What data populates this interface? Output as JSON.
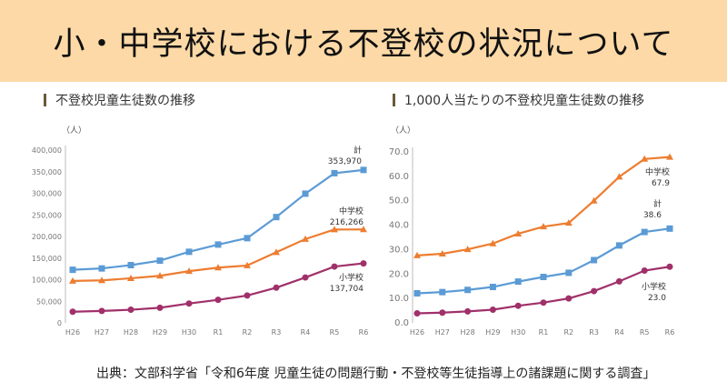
{
  "title": "小・中学校における不登校の状況について",
  "source": "出典：文部科学省「令和6年度 児童生徒の問題行動・不登校等生徒指導上の諸課題に関する調査」",
  "chart_data": [
    {
      "type": "line",
      "title": "不登校児童生徒数の推移",
      "ylabel": "（人）",
      "ylim": [
        0,
        400000
      ],
      "yticks": [
        "0",
        "50,000",
        "100,000",
        "150,000",
        "200,000",
        "250,000",
        "300,000",
        "350,000",
        "400,000"
      ],
      "categories": [
        "H26",
        "H27",
        "H28",
        "H29",
        "H30",
        "R1",
        "R2",
        "R3",
        "R4",
        "R5",
        "R6"
      ],
      "series": [
        {
          "name": "計",
          "color": "#5b9bd5",
          "marker": "square",
          "label": "353,970",
          "values": [
            122897,
            126009,
            133683,
            144031,
            164528,
            181272,
            196127,
            244940,
            299048,
            346482,
            353970
          ]
        },
        {
          "name": "中学校",
          "color": "#ed7d31",
          "marker": "triangle",
          "label": "216,266",
          "values": [
            97033,
            98408,
            103235,
            108999,
            119687,
            127922,
            132777,
            163442,
            193936,
            216112,
            216266
          ]
        },
        {
          "name": "小学校",
          "color": "#a0306a",
          "marker": "circle",
          "label": "137,704",
          "values": [
            25864,
            27583,
            30448,
            35032,
            44841,
            53350,
            63350,
            81498,
            105112,
            130370,
            137704
          ]
        }
      ]
    },
    {
      "type": "line",
      "title": "1,000人当たりの不登校児童生徒数の推移",
      "ylabel": "（人）",
      "ylim": [
        0,
        70
      ],
      "yticks": [
        "0.0",
        "10.0",
        "20.0",
        "30.0",
        "40.0",
        "50.0",
        "60.0",
        "70.0"
      ],
      "categories": [
        "H26",
        "H27",
        "H28",
        "H29",
        "H30",
        "R1",
        "R2",
        "R3",
        "R4",
        "R5",
        "R6"
      ],
      "series": [
        {
          "name": "中学校",
          "color": "#ed7d31",
          "marker": "triangle",
          "label": "67.9",
          "values": [
            27.6,
            28.3,
            30.1,
            32.5,
            36.5,
            39.4,
            40.9,
            50.0,
            59.8,
            67.1,
            67.9
          ]
        },
        {
          "name": "計",
          "color": "#5b9bd5",
          "marker": "square",
          "label": "38.6",
          "values": [
            12.1,
            12.6,
            13.5,
            14.7,
            16.9,
            18.8,
            20.5,
            25.7,
            31.7,
            37.2,
            38.6
          ]
        },
        {
          "name": "小学校",
          "color": "#a0306a",
          "marker": "circle",
          "label": "23.0",
          "values": [
            3.9,
            4.2,
            4.7,
            5.4,
            7.0,
            8.3,
            10.0,
            13.0,
            17.0,
            21.4,
            23.0
          ]
        }
      ]
    }
  ]
}
